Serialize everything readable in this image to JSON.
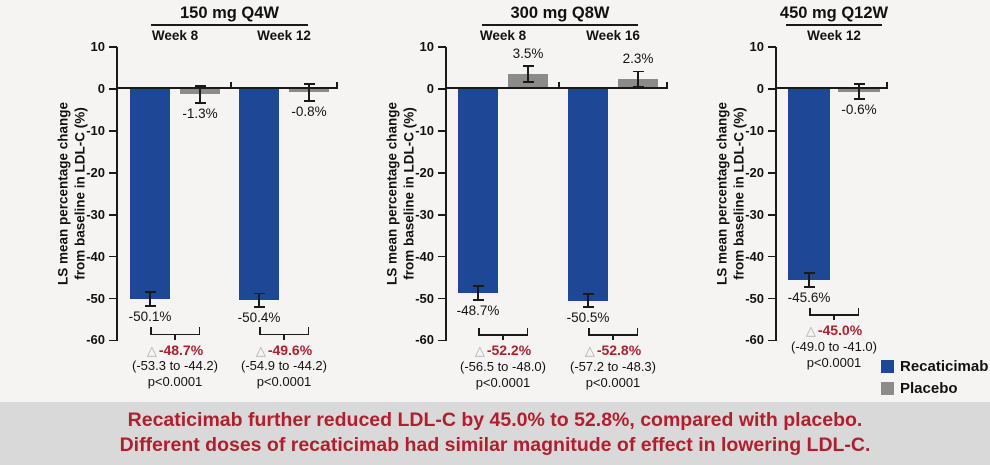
{
  "colors": {
    "recaticimab_blue": "#1e4796",
    "placebo_gray": "#8b8b8b",
    "accent_red": "#b01f2e",
    "axis_black": "#1a1a1a",
    "banner_bg": "#d9d9d9",
    "page_bg": "#f5f4f2"
  },
  "delta_symbol": "△",
  "ylabel_line1": "LS mean percentage change",
  "ylabel_line2": "from baseline in LDL-C (%)",
  "legend": {
    "items": [
      {
        "label": "Recaticimab",
        "color": "#1e4796"
      },
      {
        "label": "Placebo",
        "color": "#8b8b8b"
      }
    ]
  },
  "banner": {
    "line1": "Recaticimab further reduced LDL-C by 45.0% to 52.8%, compared with placebo.",
    "line2": "Different doses of recaticimab had similar magnitude of effect in lowering LDL-C."
  },
  "chart_data": [
    {
      "type": "bar",
      "title": "150 mg Q4W",
      "ylim": [
        -60,
        10
      ],
      "yticks": [
        10,
        0,
        -10,
        -20,
        -30,
        -40,
        -50,
        -60
      ],
      "groups": [
        {
          "week": "Week 8",
          "rec": {
            "name": "Recaticimab",
            "label": "-50.1%",
            "value": -50.1,
            "err": 1.6
          },
          "pla": {
            "name": "Placebo",
            "label": "-1.3%",
            "value": -1.3,
            "err": 2.0
          },
          "delta": "-48.7%",
          "ci": "(-53.3 to -44.2)",
          "p": "p<0.0001"
        },
        {
          "week": "Week 12",
          "rec": {
            "name": "Recaticimab",
            "label": "-50.4%",
            "value": -50.4,
            "err": 1.6
          },
          "pla": {
            "name": "Placebo",
            "label": "-0.8%",
            "value": -0.8,
            "err": 2.0
          },
          "delta": "-49.6%",
          "ci": "(-54.9 to -44.2)",
          "p": "p<0.0001"
        }
      ]
    },
    {
      "type": "bar",
      "title": "300 mg Q8W",
      "ylim": [
        -60,
        10
      ],
      "yticks": [
        10,
        0,
        -10,
        -20,
        -30,
        -40,
        -50,
        -60
      ],
      "groups": [
        {
          "week": "Week 8",
          "rec": {
            "name": "Recaticimab",
            "label": "-48.7%",
            "value": -48.7,
            "err": 1.6
          },
          "pla": {
            "name": "Placebo",
            "label": "3.5%",
            "value": 3.5,
            "err": 1.9
          },
          "delta": "-52.2%",
          "ci": "(-56.5 to -48.0)",
          "p": "p<0.0001"
        },
        {
          "week": "Week 16",
          "rec": {
            "name": "Recaticimab",
            "label": "-50.5%",
            "value": -50.5,
            "err": 1.6
          },
          "pla": {
            "name": "Placebo",
            "label": "2.3%",
            "value": 2.3,
            "err": 1.9
          },
          "delta": "-52.8%",
          "ci": "(-57.2 to -48.3)",
          "p": "p<0.0001"
        }
      ]
    },
    {
      "type": "bar",
      "title": "450 mg Q12W",
      "ylim": [
        -60,
        10
      ],
      "yticks": [
        10,
        0,
        -10,
        -20,
        -30,
        -40,
        -50,
        -60
      ],
      "groups": [
        {
          "week": "Week 12",
          "rec": {
            "name": "Recaticimab",
            "label": "-45.6%",
            "value": -45.6,
            "err": 1.7
          },
          "pla": {
            "name": "Placebo",
            "label": "-0.6%",
            "value": -0.6,
            "err": 1.8
          },
          "delta": "-45.0%",
          "ci": "(-49.0 to -41.0)",
          "p": "p<0.0001"
        }
      ]
    }
  ]
}
